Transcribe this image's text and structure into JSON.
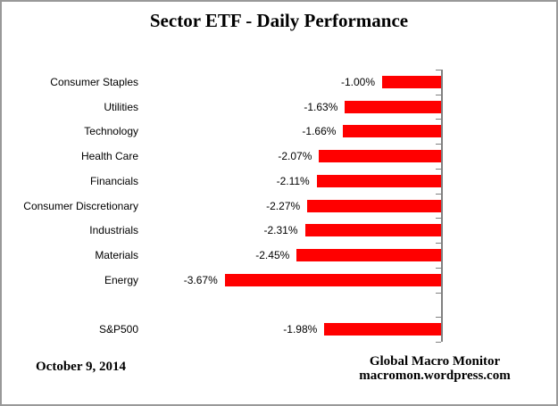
{
  "title": "Sector ETF - Daily Performance",
  "footer": {
    "date": "October 9, 2014",
    "source_line1": "Global Macro Monitor",
    "source_line2": "macromon.wordpress.com"
  },
  "colors": {
    "bar": "#FF0000",
    "axis": "#808080",
    "text": "#000000",
    "frame_border": "#999999",
    "background": "#FFFFFF"
  },
  "chart_data": {
    "type": "bar",
    "orientation": "horizontal",
    "title": "Sector ETF - Daily Performance",
    "categories": [
      "Consumer Staples",
      "Utilities",
      "Technology",
      "Health Care",
      "Financials",
      "Consumer Discretionary",
      "Industrials",
      "Materials",
      "Energy",
      "S&P500"
    ],
    "values": [
      -1.0,
      -1.63,
      -1.66,
      -2.07,
      -2.11,
      -2.27,
      -2.31,
      -2.45,
      -3.67,
      -1.98
    ],
    "value_labels": [
      "-1.00%",
      "-1.63%",
      "-1.66%",
      "-2.07%",
      "-2.11%",
      "-2.27%",
      "-2.31%",
      "-2.45%",
      "-3.67%",
      "-1.98%"
    ],
    "xlim": [
      -4,
      0
    ],
    "xlabel": "",
    "ylabel": "",
    "grid": false,
    "legend": false,
    "bar_color": "#FF0000",
    "axis_color": "#808080",
    "zero_axis_position": "right",
    "data_label_position": "outside-end-left",
    "gap_after_index": 8
  }
}
